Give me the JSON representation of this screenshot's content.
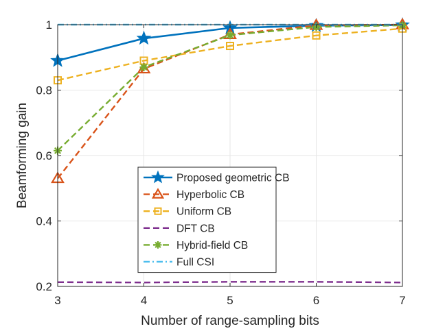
{
  "chart_data": {
    "type": "line",
    "title": "",
    "xlabel": "Number of range-sampling bits",
    "ylabel": "Beamforming gain",
    "x": [
      3,
      4,
      5,
      6,
      7
    ],
    "xlim": [
      3,
      7
    ],
    "ylim": [
      0.2,
      1.0
    ],
    "xticks": [
      "3",
      "4",
      "5",
      "6",
      "7"
    ],
    "yticks": [
      "0.2",
      "0.4",
      "0.6",
      "0.8",
      "1"
    ],
    "grid": true,
    "legend_position": "bottom-center",
    "series": [
      {
        "name": "Proposed geometric CB",
        "color": "#0072BD",
        "dash": "solid",
        "marker": "star",
        "values": [
          0.89,
          0.958,
          0.99,
          0.997,
          0.999
        ]
      },
      {
        "name": "Hyperbolic CB",
        "color": "#D95319",
        "dash": "dashed",
        "marker": "triangle",
        "values": [
          0.53,
          0.865,
          0.97,
          0.998,
          1.0
        ]
      },
      {
        "name": "Uniform CB",
        "color": "#EDB120",
        "dash": "dashed",
        "marker": "square",
        "values": [
          0.83,
          0.89,
          0.935,
          0.967,
          0.988
        ]
      },
      {
        "name": "DFT CB",
        "color": "#7E2F8E",
        "dash": "dashed",
        "marker": "none",
        "values": [
          0.213,
          0.212,
          0.214,
          0.214,
          0.212
        ]
      },
      {
        "name": "Hybrid-field CB",
        "color": "#77AC30",
        "dash": "dashed",
        "marker": "asterisk",
        "values": [
          0.615,
          0.87,
          0.968,
          0.993,
          0.998
        ]
      },
      {
        "name": "Full CSI",
        "color": "#4DBEEE",
        "dash": "dashdot",
        "marker": "none",
        "values": [
          1.0,
          1.0,
          1.0,
          1.0,
          1.0
        ]
      }
    ]
  }
}
